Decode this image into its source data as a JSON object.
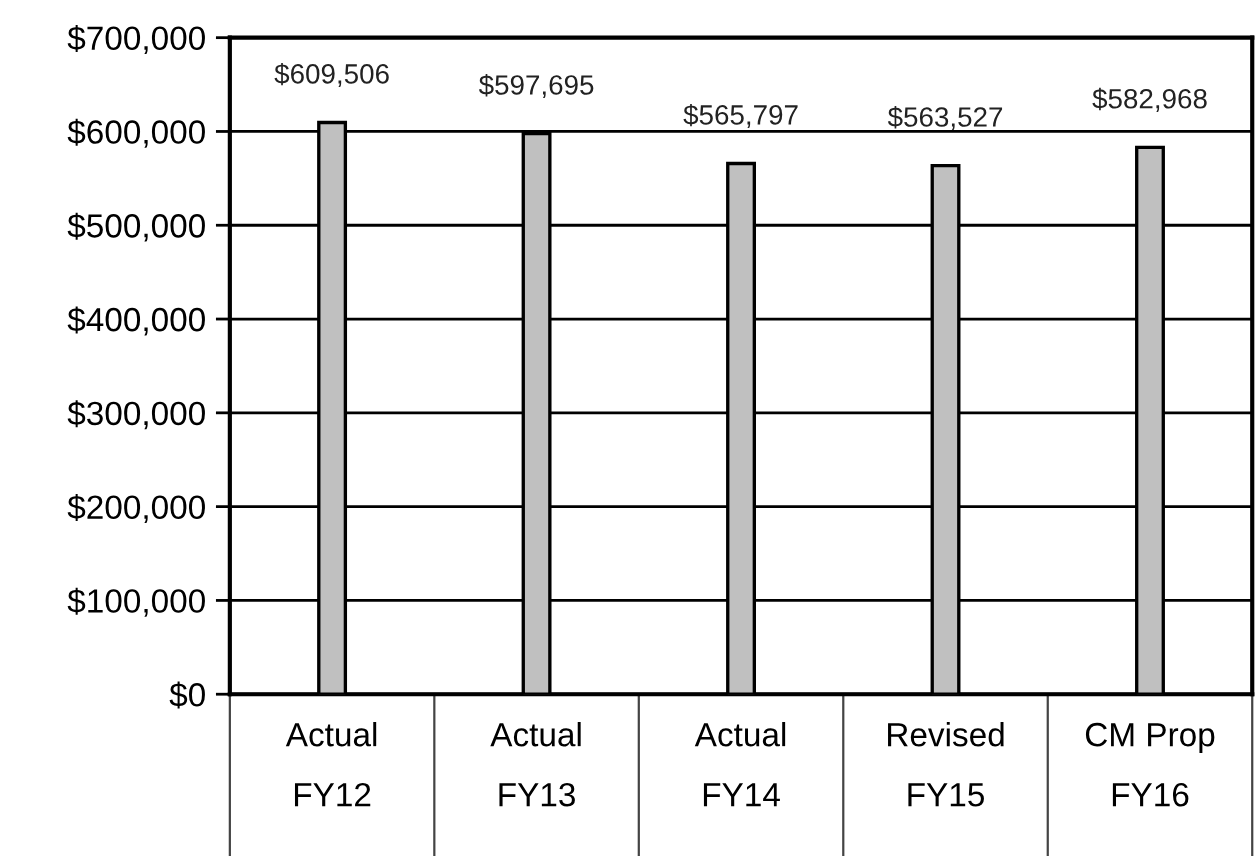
{
  "chart_data": {
    "type": "bar",
    "categories": [
      "Actual\nFY12",
      "Actual\nFY13",
      "Actual\nFY14",
      "Revised\nFY15",
      "CM Prop\nFY16"
    ],
    "values": [
      609506,
      597695,
      565797,
      563527,
      582968
    ],
    "value_labels": [
      "$609,506",
      "$597,695",
      "$565,797",
      "$563,527",
      "$582,968"
    ],
    "color": "#c0c0c0",
    "ylim": [
      0,
      700000
    ],
    "yticks": [
      {
        "value": 0,
        "label": "$0"
      },
      {
        "value": 100000,
        "label": "$100,000"
      },
      {
        "value": 200000,
        "label": "$200,000"
      },
      {
        "value": 300000,
        "label": "$300,000"
      },
      {
        "value": 400000,
        "label": "$400,000"
      },
      {
        "value": 500000,
        "label": "$500,000"
      },
      {
        "value": 600000,
        "label": "$600,000"
      },
      {
        "value": 700000,
        "label": "$700,000"
      }
    ],
    "grid": "y",
    "legend": false
  }
}
